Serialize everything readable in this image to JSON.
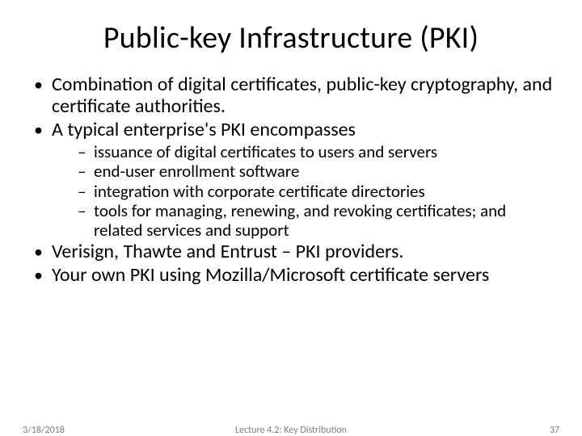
{
  "title": "Public-key Infrastructure (PKI)",
  "bullets": {
    "b0": "Combination of digital certificates, public-key cryptography, and certificate authorities.",
    "b1": "A typical enterprise's PKI encompasses",
    "b1_sub": {
      "s0": "issuance of digital certificates to users and servers",
      "s1": "end-user enrollment software",
      "s2": "integration with corporate certificate directories",
      "s3": "tools for managing, renewing, and revoking certificates; and related services and support"
    },
    "b2": "Verisign, Thawte and Entrust – PKI providers.",
    "b3": "Your own PKI using Mozilla/Microsoft certificate servers"
  },
  "footer": {
    "date": "3/18/2018",
    "center": "Lecture 4.2: Key Distribution",
    "page": "37"
  },
  "colors": {
    "background": "#ffffff",
    "text": "#000000",
    "footer_text": "#808080"
  },
  "typography": {
    "title_fontsize": 38,
    "body_fontsize": 24,
    "sub_fontsize": 21,
    "footer_fontsize": 12,
    "font_family": "Calibri"
  }
}
